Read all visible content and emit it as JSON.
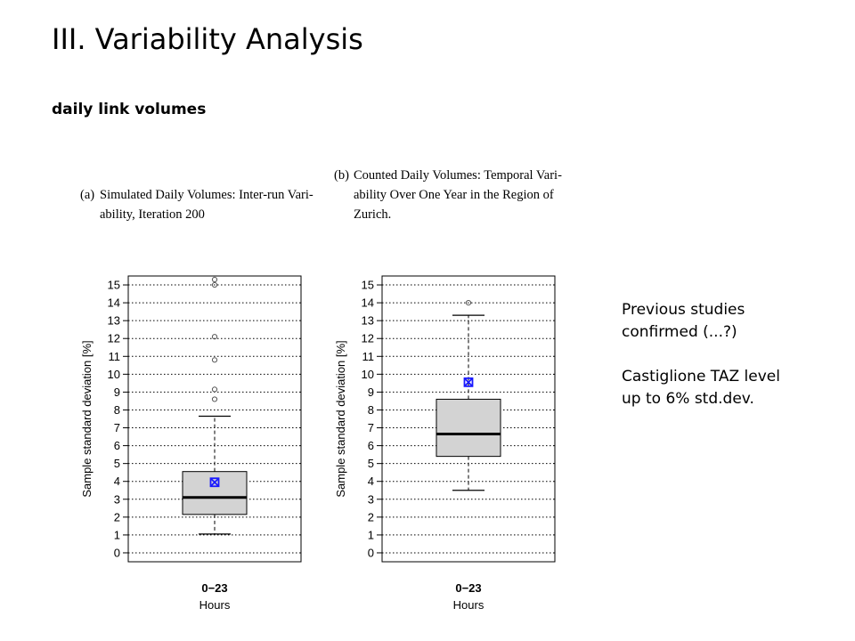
{
  "slide": {
    "title": "III. Variability Analysis",
    "subtitle": "daily link volumes",
    "notes": [
      "Previous studies",
      "confirmed (...?)",
      "Castiglione TAZ level",
      "up to 6% std.dev."
    ]
  },
  "chart_data": [
    {
      "type": "box",
      "panel": "(a)",
      "caption_line1": "Simulated Daily Volumes: Inter-run Vari-",
      "caption_line2": "ability, Iteration 200",
      "xlabel": "Hours",
      "categories": [
        "0−23"
      ],
      "ylabel": "Sample standard deviation [%]",
      "ylim": [
        -0.5,
        15.5
      ],
      "yticks": [
        0,
        1,
        2,
        3,
        4,
        5,
        6,
        7,
        8,
        9,
        10,
        11,
        12,
        13,
        14,
        15
      ],
      "grid": "dotted horizontal at integers",
      "box": {
        "whisker_low": 1.05,
        "q1": 2.15,
        "median": 3.1,
        "q3": 4.55,
        "whisker_high": 7.65,
        "mean": 3.95,
        "outliers": [
          8.6,
          9.15,
          10.8,
          12.1,
          15.0,
          15.3
        ]
      },
      "colors": {
        "box_fill": "#d3d3d3",
        "mean_marker": "#1a1aff"
      }
    },
    {
      "type": "box",
      "panel": "(b)",
      "caption_line1": "Counted Daily Volumes: Temporal Vari-",
      "caption_line2": "ability Over One Year in the Region of",
      "caption_line3": "Zurich.",
      "xlabel": "Hours",
      "categories": [
        "0−23"
      ],
      "ylabel": "Sample standard deviation [%]",
      "ylim": [
        -0.5,
        15.5
      ],
      "yticks": [
        0,
        1,
        2,
        3,
        4,
        5,
        6,
        7,
        8,
        9,
        10,
        11,
        12,
        13,
        14,
        15
      ],
      "grid": "dotted horizontal at integers",
      "box": {
        "whisker_low": 3.5,
        "q1": 5.4,
        "median": 6.65,
        "q3": 8.6,
        "whisker_high": 13.3,
        "mean": 9.55,
        "outliers": [
          14.0
        ]
      },
      "colors": {
        "box_fill": "#d3d3d3",
        "mean_marker": "#1a1aff"
      }
    }
  ]
}
